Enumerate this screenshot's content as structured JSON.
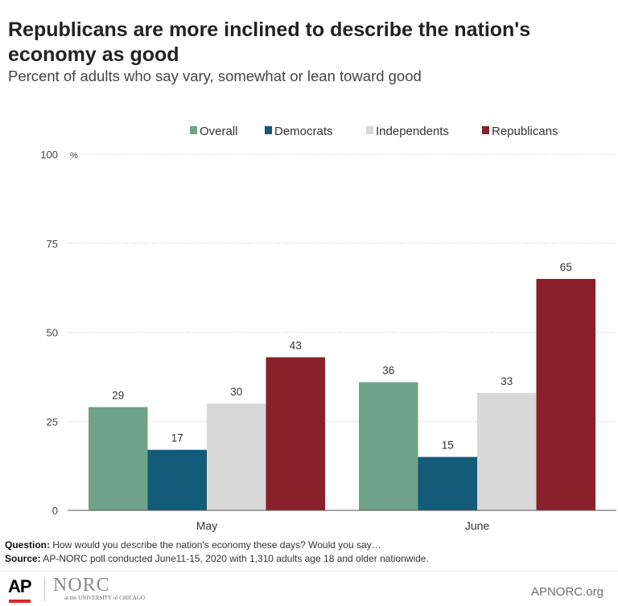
{
  "header": {
    "title": "Republicans are more inclined to describe the nation's economy as good",
    "subtitle": "Percent of adults who say vary, somewhat or lean toward good"
  },
  "chart_data": {
    "type": "bar",
    "title": "Republicans are more inclined to describe the nation's economy as good",
    "subtitle": "Percent of adults who say vary, somewhat or lean toward good",
    "categories": [
      "May",
      "June"
    ],
    "series": [
      {
        "name": "Overall",
        "color": "#6fa387",
        "values": [
          29,
          36
        ]
      },
      {
        "name": "Democrats",
        "color": "#145a79",
        "values": [
          17,
          15
        ]
      },
      {
        "name": "Independents",
        "color": "#d8d8d8",
        "values": [
          30,
          33
        ]
      },
      {
        "name": "Republicans",
        "color": "#8a2029",
        "values": [
          43,
          65
        ]
      }
    ],
    "ylim": [
      0,
      100
    ],
    "yticks": [
      0,
      25,
      50,
      75,
      100
    ],
    "yunit": "%",
    "grid": true,
    "legend_position": "top"
  },
  "notes": {
    "question_label": "Question:",
    "question_text": "How would you describe the nation's economy these days? Would you say…",
    "source_label": "Source:",
    "source_text": "AP-NORC poll conducted June11-15, 2020 with 1,310 adults age 18 and older nationwide."
  },
  "footer": {
    "ap_logo_text": "AP",
    "norc_logo_text": "NORC",
    "norc_logo_sub": "at the UNIVERSITY of CHICAGO",
    "site": "APNORC.org"
  }
}
